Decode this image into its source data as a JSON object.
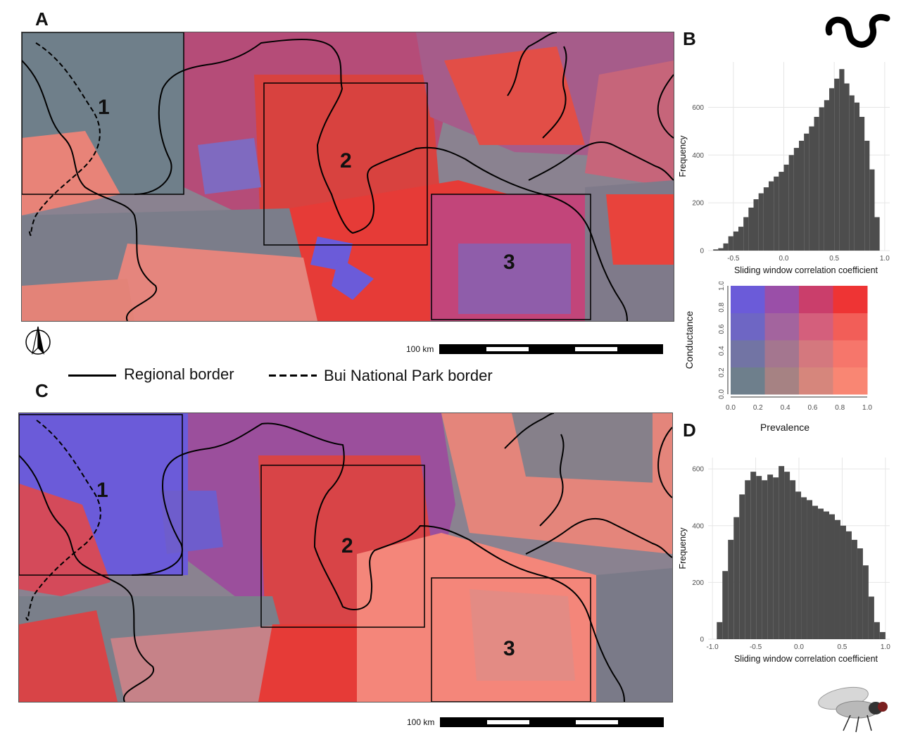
{
  "panels": {
    "a": {
      "letter": "A"
    },
    "b": {
      "letter": "B"
    },
    "c": {
      "letter": "C"
    },
    "d": {
      "letter": "D"
    }
  },
  "map_boxes": [
    "1",
    "2",
    "3"
  ],
  "scale_bar_label": "100 km",
  "legend": {
    "regional_border": "Regional border",
    "park_border": "Bui National Park border"
  },
  "icons": {
    "north_arrow": "north-arrow-icon",
    "worm": "worm-icon",
    "fly": "fly-icon"
  },
  "bivariate_legend": {
    "ylabel": "Conductance",
    "xlabel": "Prevalence",
    "ticks": [
      "0.0",
      "0.2",
      "0.4",
      "0.6",
      "0.8",
      "1.0"
    ],
    "colors": [
      [
        "#6E7F8C",
        "#A68283",
        "#D6867C",
        "#F98673"
      ],
      [
        "#7274A4",
        "#A4768F",
        "#D4787E",
        "#F6766B"
      ],
      [
        "#6E66C4",
        "#A3649E",
        "#D45F7C",
        "#F25E58"
      ],
      [
        "#6B5BD9",
        "#9A4FA8",
        "#CA3E6B",
        "#EE3434"
      ]
    ]
  },
  "chart_data": [
    {
      "type": "bar",
      "panel": "B",
      "xlabel": "Sliding window correlation coefficient",
      "ylabel": "Frequency",
      "xlim": [
        -0.75,
        1.05
      ],
      "ylim": [
        0,
        790
      ],
      "xticks": [
        -0.5,
        0.0,
        0.5,
        1.0
      ],
      "xtick_labels": [
        "-0.5",
        "0.0",
        "0.5",
        "1.0"
      ],
      "yticks": [
        0,
        200,
        400,
        600
      ],
      "bin_width": 0.05,
      "bin_starts": [
        -0.7,
        -0.65,
        -0.6,
        -0.55,
        -0.5,
        -0.45,
        -0.4,
        -0.35,
        -0.3,
        -0.25,
        -0.2,
        -0.15,
        -0.1,
        -0.05,
        0.0,
        0.05,
        0.1,
        0.15,
        0.2,
        0.25,
        0.3,
        0.35,
        0.4,
        0.45,
        0.5,
        0.55,
        0.6,
        0.65,
        0.7,
        0.75,
        0.8,
        0.85,
        0.9
      ],
      "values": [
        5,
        10,
        30,
        60,
        80,
        100,
        140,
        180,
        215,
        240,
        265,
        290,
        310,
        330,
        360,
        400,
        430,
        460,
        490,
        520,
        560,
        600,
        630,
        680,
        720,
        760,
        700,
        650,
        620,
        560,
        460,
        340,
        140
      ]
    },
    {
      "type": "bar",
      "panel": "D",
      "xlabel": "Sliding window correlation coefficient",
      "ylabel": "Frequency",
      "xlim": [
        -1.05,
        1.05
      ],
      "ylim": [
        0,
        640
      ],
      "xticks": [
        -1.0,
        -0.5,
        0.0,
        0.5,
        1.0
      ],
      "xtick_labels": [
        "-1.0",
        "-0.5",
        "0.0",
        "0.5",
        "1.0"
      ],
      "yticks": [
        0,
        200,
        400,
        600
      ],
      "bin_width": 0.065,
      "bin_starts": [
        -0.95,
        -0.885,
        -0.82,
        -0.755,
        -0.69,
        -0.625,
        -0.56,
        -0.495,
        -0.43,
        -0.365,
        -0.3,
        -0.235,
        -0.17,
        -0.105,
        -0.04,
        0.025,
        0.09,
        0.155,
        0.22,
        0.285,
        0.35,
        0.415,
        0.48,
        0.545,
        0.61,
        0.675,
        0.74,
        0.805,
        0.87,
        0.935
      ],
      "values": [
        60,
        240,
        350,
        430,
        510,
        560,
        590,
        575,
        560,
        580,
        570,
        610,
        590,
        560,
        520,
        500,
        490,
        470,
        460,
        450,
        440,
        420,
        400,
        380,
        350,
        320,
        260,
        150,
        60,
        25
      ]
    }
  ]
}
